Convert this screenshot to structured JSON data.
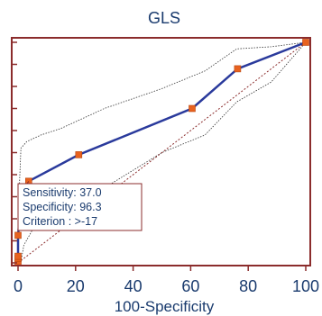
{
  "chart_data": {
    "type": "line",
    "title": "GLS",
    "xlabel": "100-Specificity",
    "ylabel": "",
    "xlim": [
      0,
      100
    ],
    "ylim": [
      0,
      100
    ],
    "x_ticks": [
      0,
      20,
      40,
      60,
      80,
      100
    ],
    "x_tick_labels": [
      "0",
      "20",
      "40",
      "60",
      "80",
      "100"
    ],
    "y_ticks": [
      0,
      10,
      20,
      30,
      40,
      50,
      60,
      70,
      80,
      90,
      100
    ],
    "grid": false,
    "legend": "none",
    "series": [
      {
        "role": "roc-curve",
        "color": "#2a3a9c",
        "marker_color": "#e8621f",
        "x": [
          0,
          0,
          0,
          0,
          1.2,
          3.7,
          21.1,
          60.5,
          76.3,
          100
        ],
        "y": [
          0,
          2,
          3,
          12.5,
          29.5,
          37,
          49,
          70,
          88,
          100
        ]
      },
      {
        "role": "upper-confidence-bound",
        "color": "#333333",
        "x": [
          0,
          1,
          3,
          8,
          15,
          30,
          50,
          65,
          76,
          88,
          100
        ],
        "y": [
          20,
          52,
          55,
          58,
          61,
          70,
          79,
          87,
          97,
          98,
          100
        ]
      },
      {
        "role": "lower-confidence-bound",
        "color": "#333333",
        "x": [
          0,
          1,
          2,
          5,
          15,
          30,
          50,
          65,
          76,
          88,
          100
        ],
        "y": [
          0,
          0.5,
          8,
          15,
          24,
          34,
          50,
          58,
          73,
          82,
          100
        ]
      },
      {
        "role": "diagonal-reference",
        "color": "#8b2c2c",
        "x": [
          0,
          100
        ],
        "y": [
          0,
          100
        ]
      }
    ],
    "annotation": {
      "lines": [
        "Sensitivity: 37.0",
        "Specificity: 96.3",
        "Criterion : >-17"
      ],
      "point": {
        "x": 3.7,
        "y": 37
      }
    }
  }
}
